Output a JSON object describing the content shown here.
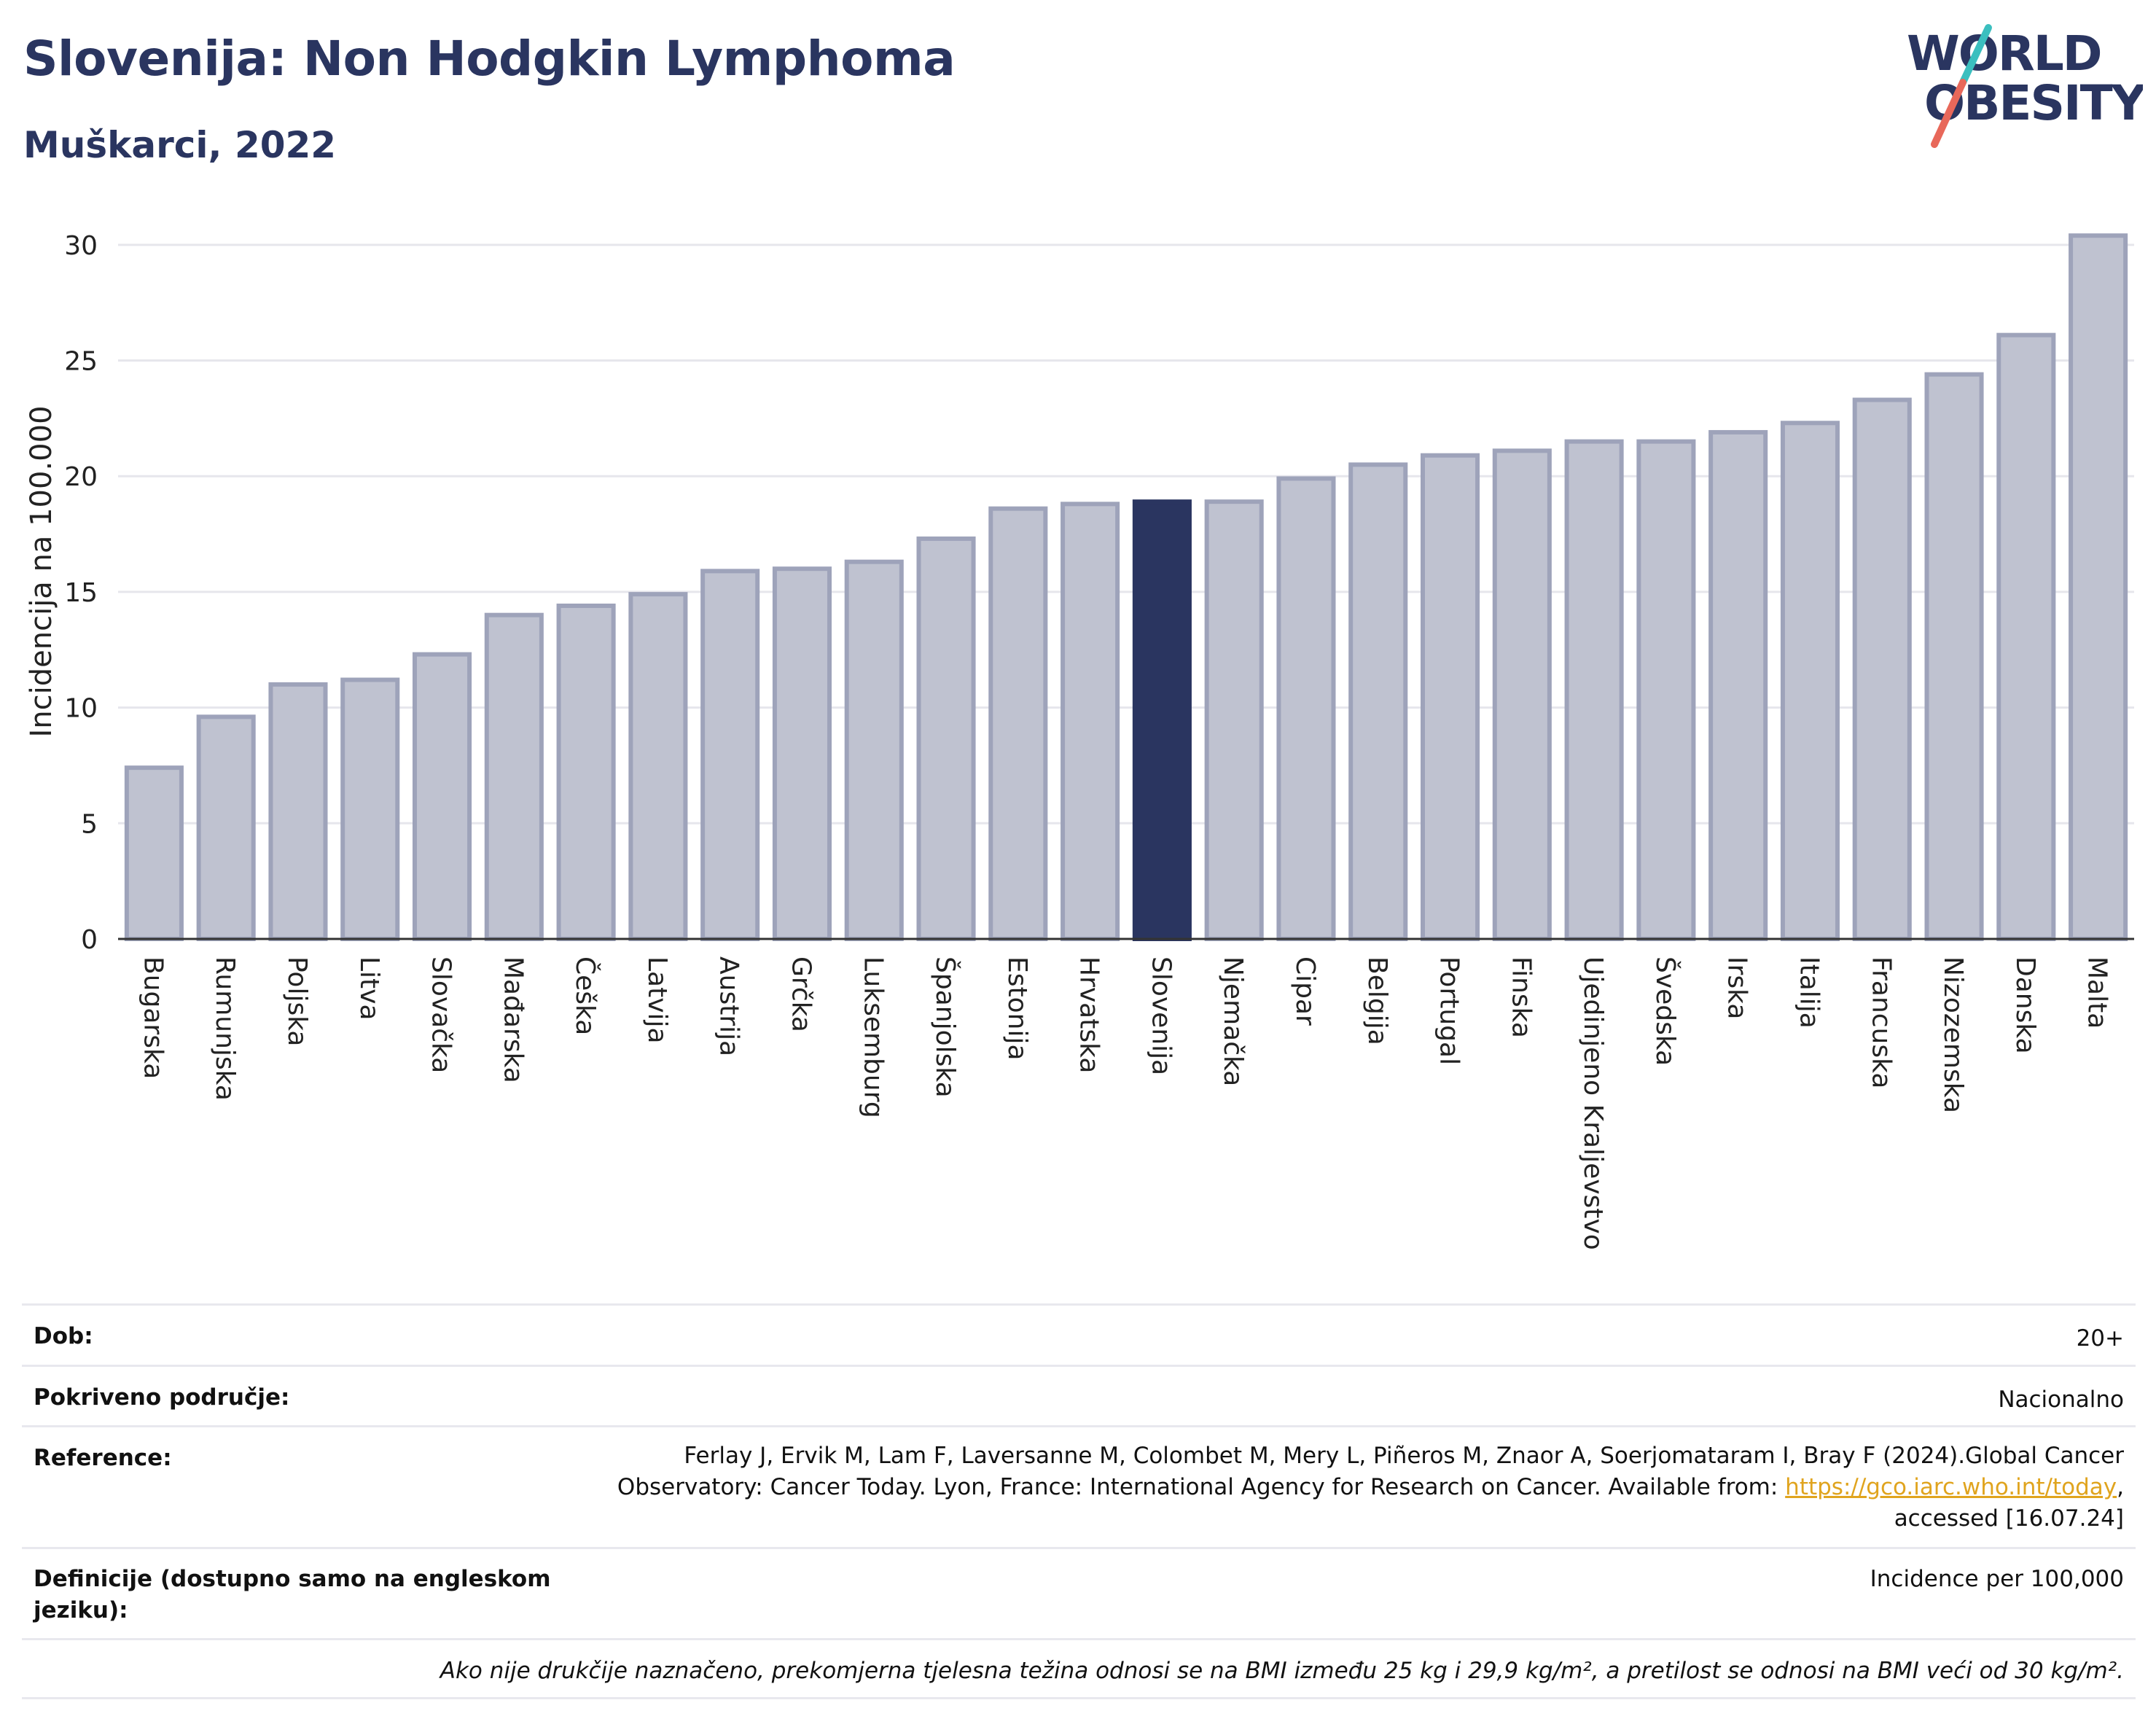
{
  "header": {
    "title": "Slovenija: Non Hodgkin Lymphoma",
    "subtitle": "Muškarci, 2022",
    "logo_line1": "WORLD",
    "logo_line2": "OBESITY"
  },
  "colors": {
    "bar": "#bfc2d0",
    "bar_edge": "#9ea3ba",
    "highlight": "#2a3560",
    "title": "#2a3560",
    "logo_teal": "#3bbfbf",
    "logo_red": "#e8685a"
  },
  "chart_data": {
    "type": "bar",
    "title": "Slovenija: Non Hodgkin Lymphoma",
    "subtitle": "Muškarci, 2022",
    "xlabel": "",
    "ylabel": "Incidencija na 100.000",
    "ylim": [
      0,
      30.5
    ],
    "yticks": [
      0,
      5,
      10,
      15,
      20,
      25,
      30
    ],
    "grid": true,
    "highlight": "Slovenija",
    "categories": [
      "Bugarska",
      "Rumunjska",
      "Poljska",
      "Litva",
      "Slovačka",
      "Mađarska",
      "Češka",
      "Latvija",
      "Austrija",
      "Grčka",
      "Luksemburg",
      "Španjolska",
      "Estonija",
      "Hrvatska",
      "Slovenija",
      "Njemačka",
      "Cipar",
      "Belgija",
      "Portugal",
      "Finska",
      "Ujedinjeno Kraljevstvo",
      "Švedska",
      "Irska",
      "Italija",
      "Francuska",
      "Nizozemska",
      "Danska",
      "Malta"
    ],
    "values": [
      7.4,
      9.6,
      11.0,
      11.2,
      12.3,
      14.0,
      14.4,
      14.9,
      15.9,
      16.0,
      16.3,
      17.3,
      18.6,
      18.8,
      18.9,
      18.9,
      19.9,
      20.5,
      20.9,
      21.1,
      21.5,
      21.5,
      21.9,
      22.3,
      23.3,
      24.4,
      26.1,
      30.4
    ]
  },
  "info": {
    "dob_label": "Dob:",
    "dob_value": "20+",
    "coverage_label": "Pokriveno područje:",
    "coverage_value": "Nacionalno",
    "ref_label": "Reference:",
    "ref_line1": "Ferlay J, Ervik M, Lam F, Laversanne M, Colombet M, Mery L, Piñeros M, Znaor A, Soerjomataram I, Bray F (2024).Global Cancer",
    "ref_line2": "Observatory: Cancer Today. Lyon, France: International Agency for Research on Cancer. Available from:",
    "ref_link": "https://gco.iarc.who.int/today",
    "ref_line3": "accessed [16.07.24]",
    "def_label_1": "Definicije (dostupno samo na engleskom",
    "def_label_2": "jeziku):",
    "def_value": "Incidence per 100,000",
    "note": "Ako nije drukčije naznačeno, prekomjerna tjelesna težina odnosi se na BMI između 25 kg i 29,9 kg/m², a pretilost se odnosi na BMI veći od 30 kg/m²."
  }
}
